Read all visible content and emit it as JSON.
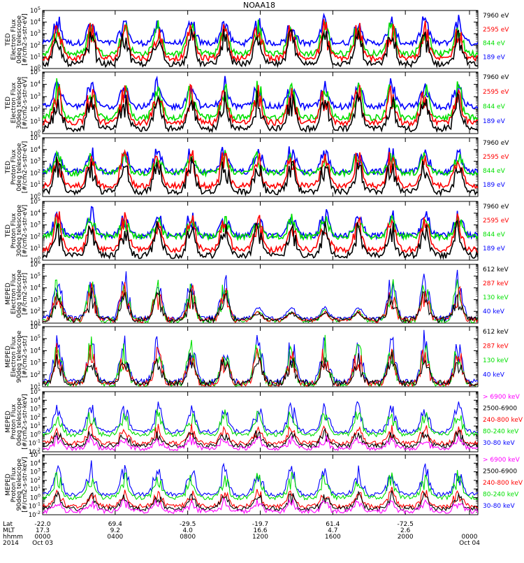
{
  "title": "NOAA18",
  "colors": {
    "black": "#000000",
    "red": "#ff0000",
    "green": "#00e000",
    "blue": "#0000ff",
    "magenta": "#ff00ff"
  },
  "xaxis": {
    "row_labels": [
      "Lat",
      "MLT",
      "hhmm",
      "2014"
    ],
    "ticks": [
      {
        "lat": "-22.0",
        "mlt": "17.3",
        "hhmm": "0000",
        "date": "Oct 03"
      },
      {
        "lat": "69.4",
        "mlt": "9.2",
        "hhmm": "0400",
        "date": ""
      },
      {
        "lat": "-29.5",
        "mlt": "4.0",
        "hhmm": "0800",
        "date": ""
      },
      {
        "lat": "-19.7",
        "mlt": "16.6",
        "hhmm": "1200",
        "date": ""
      },
      {
        "lat": "61.4",
        "mlt": "4.7",
        "hhmm": "1600",
        "date": ""
      },
      {
        "lat": "-72.5",
        "mlt": "2.6",
        "hhmm": "2000",
        "date": ""
      },
      {
        "lat": "",
        "mlt": "",
        "hhmm": "0000",
        "date": "Oct 04"
      }
    ]
  },
  "chart_data": [
    {
      "type": "line",
      "instrument": "TED",
      "quantity": "Electron Flux",
      "telescope": "0deg telescope",
      "units": "[#/cm2-s-str-eV]",
      "ylim_exp": [
        0,
        5
      ],
      "scale": "log",
      "series": [
        {
          "name": "7960 eV",
          "color": "black"
        },
        {
          "name": "2595 eV",
          "color": "red"
        },
        {
          "name": "844 eV",
          "color": "green"
        },
        {
          "name": "189 eV",
          "color": "blue"
        }
      ]
    },
    {
      "type": "line",
      "instrument": "TED",
      "quantity": "Electron Flux",
      "telescope": "30deg telescope",
      "units": "[#/cm2-s-str-eV]",
      "ylim_exp": [
        0,
        5
      ],
      "scale": "log",
      "series": [
        {
          "name": "7960 eV",
          "color": "black"
        },
        {
          "name": "2595 eV",
          "color": "red"
        },
        {
          "name": "844 eV",
          "color": "green"
        },
        {
          "name": "189 eV",
          "color": "blue"
        }
      ]
    },
    {
      "type": "line",
      "instrument": "TED",
      "quantity": "Proton Flux",
      "telescope": "0deg telescope",
      "units": "[#/cm2-s-str-eV]",
      "ylim_exp": [
        0,
        5
      ],
      "scale": "log",
      "series": [
        {
          "name": "7960 eV",
          "color": "black"
        },
        {
          "name": "2595 eV",
          "color": "red"
        },
        {
          "name": "844 eV",
          "color": "green"
        },
        {
          "name": "189 eV",
          "color": "blue"
        }
      ]
    },
    {
      "type": "line",
      "instrument": "TED",
      "quantity": "Proton Flux",
      "telescope": "30deg telescope",
      "units": "[#/cm2-s-str-eV]",
      "ylim_exp": [
        0,
        5
      ],
      "scale": "log",
      "series": [
        {
          "name": "7960 eV",
          "color": "black"
        },
        {
          "name": "2595 eV",
          "color": "red"
        },
        {
          "name": "844 eV",
          "color": "green"
        },
        {
          "name": "189 eV",
          "color": "blue"
        }
      ]
    },
    {
      "type": "line",
      "instrument": "MEPED",
      "quantity": "Electron Flux",
      "telescope": "0deg telescope",
      "units": "[#/cm2-s-str]",
      "ylim_exp": [
        1,
        6
      ],
      "scale": "log",
      "series": [
        {
          "name": "612 keV",
          "color": "black"
        },
        {
          "name": "287 keV",
          "color": "red"
        },
        {
          "name": "130 keV",
          "color": "green"
        },
        {
          "name": "40 keV",
          "color": "blue"
        }
      ]
    },
    {
      "type": "line",
      "instrument": "MEPED",
      "quantity": "Electron Flux",
      "telescope": "90deg telescope",
      "units": "[#/cm2-s-str]",
      "ylim_exp": [
        1,
        6
      ],
      "scale": "log",
      "series": [
        {
          "name": "612 keV",
          "color": "black"
        },
        {
          "name": "287 keV",
          "color": "red"
        },
        {
          "name": "130 keV",
          "color": "green"
        },
        {
          "name": "40 keV",
          "color": "blue"
        }
      ]
    },
    {
      "type": "line",
      "instrument": "MEPED",
      "quantity": "Proton Flux",
      "telescope": "0deg telescope",
      "units": "[#/cm2-s-str-keV]",
      "ylim_exp": [
        -2,
        5
      ],
      "scale": "log",
      "series": [
        {
          "name": "> 6900 keV",
          "color": "magenta"
        },
        {
          "name": "2500-6900",
          "color": "black"
        },
        {
          "name": "240-800 keV",
          "color": "red"
        },
        {
          "name": "80-240 keV",
          "color": "green"
        },
        {
          "name": "30-80 keV",
          "color": "blue"
        }
      ]
    },
    {
      "type": "line",
      "instrument": "MEPED",
      "quantity": "Proton Flux",
      "telescope": "90deg telescope",
      "units": "[#/cm2-s-str-keV]",
      "ylim_exp": [
        -2,
        5
      ],
      "scale": "log",
      "series": [
        {
          "name": "> 6900 keV",
          "color": "magenta"
        },
        {
          "name": "2500-6900",
          "color": "black"
        },
        {
          "name": "240-800 keV",
          "color": "red"
        },
        {
          "name": "80-240 keV",
          "color": "green"
        },
        {
          "name": "30-80 keV",
          "color": "blue"
        }
      ]
    }
  ]
}
